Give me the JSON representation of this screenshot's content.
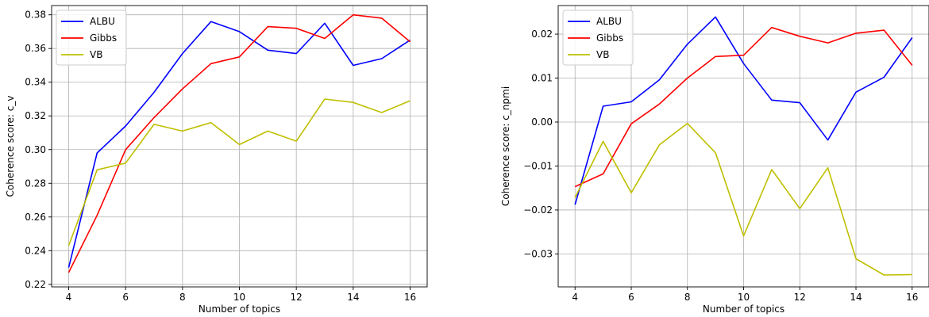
{
  "chart_data": [
    {
      "type": "line",
      "xlabel": "Number of topics",
      "ylabel": "Coherence score: c_v",
      "x": [
        4,
        5,
        6,
        7,
        8,
        9,
        10,
        11,
        12,
        13,
        14,
        15,
        16
      ],
      "xlim": [
        3.4,
        16.6
      ],
      "ylim": [
        0.2185,
        0.3855
      ],
      "xticks": [
        4,
        6,
        8,
        10,
        12,
        14,
        16
      ],
      "yticks": [
        0.22,
        0.24,
        0.26,
        0.28,
        0.3,
        0.32,
        0.34,
        0.36,
        0.38
      ],
      "ytick_labels": [
        "0.22",
        "0.24",
        "0.26",
        "0.28",
        "0.30",
        "0.32",
        "0.34",
        "0.36",
        "0.38"
      ],
      "grid": true,
      "legend": "top-left",
      "series": [
        {
          "name": "ALBU",
          "color": "#0000ff",
          "values": [
            0.23,
            0.298,
            0.314,
            0.334,
            0.357,
            0.376,
            0.37,
            0.359,
            0.357,
            0.375,
            0.35,
            0.354,
            0.365
          ]
        },
        {
          "name": "Gibbs",
          "color": "#ff0000",
          "values": [
            0.227,
            0.261,
            0.3,
            0.319,
            0.336,
            0.351,
            0.355,
            0.373,
            0.372,
            0.366,
            0.38,
            0.378,
            0.364
          ]
        },
        {
          "name": "VB",
          "color": "#bfbf00",
          "values": [
            0.243,
            0.288,
            0.292,
            0.315,
            0.311,
            0.316,
            0.303,
            0.311,
            0.305,
            0.33,
            0.328,
            0.322,
            0.329
          ]
        }
      ]
    },
    {
      "type": "line",
      "xlabel": "Number of topics",
      "ylabel": "Coherence score: c_npmi",
      "x": [
        4,
        5,
        6,
        7,
        8,
        9,
        10,
        11,
        12,
        13,
        14,
        15,
        16
      ],
      "xlim": [
        3.4,
        16.6
      ],
      "ylim": [
        -0.0375,
        0.0265
      ],
      "xticks": [
        4,
        6,
        8,
        10,
        12,
        14,
        16
      ],
      "yticks": [
        -0.03,
        -0.02,
        -0.01,
        0.0,
        0.01,
        0.02
      ],
      "ytick_labels": [
        "−0.03",
        "−0.02",
        "−0.01",
        "0.00",
        "0.01",
        "0.02"
      ],
      "grid": true,
      "legend": "top-left",
      "series": [
        {
          "name": "ALBU",
          "color": "#0000ff",
          "values": [
            -0.0188,
            0.0036,
            0.0046,
            0.0096,
            0.0177,
            0.0239,
            0.0133,
            0.005,
            0.0044,
            -0.0041,
            0.0068,
            0.0102,
            0.0192
          ]
        },
        {
          "name": "Gibbs",
          "color": "#ff0000",
          "values": [
            -0.0147,
            -0.0118,
            -0.0004,
            0.0041,
            0.01,
            0.0149,
            0.0152,
            0.0215,
            0.0195,
            0.018,
            0.0202,
            0.0209,
            0.0129
          ]
        },
        {
          "name": "VB",
          "color": "#bfbf00",
          "values": [
            -0.0172,
            -0.0044,
            -0.0161,
            -0.0052,
            -0.0003,
            -0.007,
            -0.0259,
            -0.0108,
            -0.0197,
            -0.0104,
            -0.0311,
            -0.0348,
            -0.0347
          ]
        }
      ]
    }
  ]
}
